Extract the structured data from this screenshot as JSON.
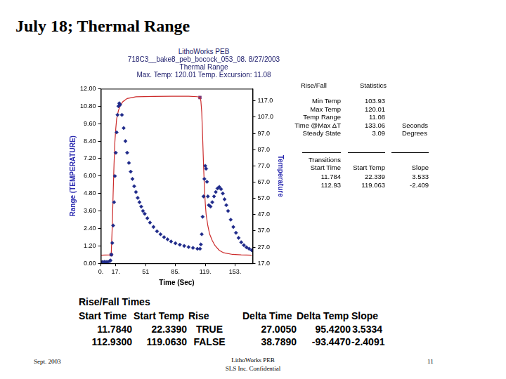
{
  "slide": {
    "title": "July 18; Thermal Range",
    "footer": {
      "left": "Sept. 2003",
      "center": [
        "LithoWorks PEB",
        "SLS Inc. Confidential"
      ],
      "right": "11"
    }
  },
  "chart_data": {
    "type": "scatter",
    "annotations": [
      "LithoWorks PEB",
      "718C3__bake8_peb_bocock_053_08. 8/27/2003"
    ],
    "title": "Thermal Range",
    "subtitle": "Max. Temp: 120.01  Temp. Excursion: 11.08",
    "x_label": "Time (Sec)",
    "y_label": "Range (TEMPERATURE)",
    "y2_label": "Temperature",
    "xlim": [
      0,
      173
    ],
    "xticks": [
      {
        "value": 0,
        "label": "0."
      },
      {
        "value": 17,
        "label": "17."
      },
      51,
      {
        "value": 85,
        "label": "85."
      },
      {
        "value": 119,
        "label": "119."
      },
      {
        "value": 153,
        "label": "153."
      }
    ],
    "ylim": [
      0,
      12
    ],
    "yticks": [
      {
        "value": 0,
        "label": "0.00"
      },
      {
        "value": 1.2,
        "label": "1.20"
      },
      {
        "value": 2.4,
        "label": "2.40"
      },
      {
        "value": 3.6,
        "label": "3.60"
      },
      {
        "value": 4.8,
        "label": "4.80"
      },
      {
        "value": 6,
        "label": "6.00"
      },
      {
        "value": 7.2,
        "label": "7.20"
      },
      {
        "value": 8.4,
        "label": "8.40"
      },
      {
        "value": 9.6,
        "label": "9.60"
      },
      {
        "value": 10.8,
        "label": "10.80"
      },
      {
        "value": 12,
        "label": "12.00"
      }
    ],
    "y2lim": [
      17,
      124.5
    ],
    "y2ticks": [
      {
        "value": 17,
        "label": "17.0"
      },
      {
        "value": 27,
        "label": "27.0"
      },
      {
        "value": 37,
        "label": "37.0"
      },
      {
        "value": 47,
        "label": "47.0"
      },
      {
        "value": 57,
        "label": "57.0"
      },
      {
        "value": 67,
        "label": "67.0"
      },
      {
        "value": 77,
        "label": "77.0"
      },
      {
        "value": 87,
        "label": "87.0"
      },
      {
        "value": 97,
        "label": "97.0"
      },
      {
        "value": 107,
        "label": "107.0"
      },
      {
        "value": 117,
        "label": "117.0"
      }
    ],
    "grid": false,
    "series": [
      {
        "name": "Range",
        "color": "#1f2a8a",
        "marker": "diamond",
        "line_style": "none",
        "x": [
          0,
          2,
          4,
          6,
          8,
          10,
          11,
          12,
          13,
          14,
          15,
          16,
          17,
          18,
          19,
          20,
          21,
          22,
          24,
          26,
          28,
          30,
          32,
          34,
          36,
          38,
          40,
          42,
          44,
          46,
          48,
          50,
          53,
          56,
          60,
          64,
          68,
          72,
          76,
          80,
          85,
          90,
          95,
          100,
          105,
          110,
          113,
          114,
          115,
          116,
          117,
          118,
          119,
          120,
          121,
          122,
          123,
          125,
          127,
          129,
          131,
          133,
          135,
          137,
          139,
          141,
          143,
          145,
          148,
          151,
          154,
          157,
          160,
          163,
          166,
          169,
          172
        ],
        "values": [
          0.1,
          0.1,
          0.1,
          0.1,
          0.1,
          0.15,
          0.2,
          0.6,
          1.4,
          2.6,
          4.2,
          6.0,
          7.6,
          9.0,
          10.2,
          10.8,
          11.0,
          10.9,
          10.2,
          9.3,
          8.4,
          7.6,
          6.9,
          6.3,
          5.8,
          5.3,
          4.9,
          4.5,
          4.2,
          3.9,
          3.6,
          3.4,
          3.1,
          2.8,
          2.5,
          2.2,
          2.0,
          1.8,
          1.65,
          1.5,
          1.38,
          1.28,
          1.2,
          1.12,
          1.06,
          1.0,
          1.0,
          1.3,
          2.0,
          3.2,
          4.6,
          5.8,
          6.7,
          6.5,
          5.6,
          4.6,
          4.0,
          3.9,
          4.2,
          4.6,
          4.9,
          5.15,
          5.25,
          5.1,
          4.8,
          4.4,
          4.0,
          3.6,
          3.0,
          2.5,
          2.1,
          1.75,
          1.45,
          1.25,
          1.1,
          1.0,
          0.9
        ]
      },
      {
        "name": "Temperature",
        "color": "#cc2b2b",
        "marker": "none",
        "line_style": "solid",
        "axis": "y2",
        "x": [
          0,
          5,
          10,
          11.784,
          13,
          14,
          15,
          16,
          17,
          18,
          20,
          22,
          25,
          30,
          40,
          60,
          80,
          100,
          110,
          112.93,
          114,
          115,
          116,
          117,
          118,
          119,
          120,
          122,
          124,
          127,
          130,
          135,
          140,
          150,
          160,
          172
        ],
        "values": [
          22.0,
          22.1,
          22.2,
          22.339,
          40,
          60,
          78,
          92,
          100,
          106,
          111,
          114,
          116.5,
          118.5,
          119.5,
          119.8,
          119.9,
          119.9,
          119.6,
          119.063,
          117,
          110,
          95,
          78,
          64,
          54,
          47,
          40,
          35,
          31,
          28,
          25,
          23.5,
          22.5,
          22.2,
          22.0
        ]
      },
      {
        "name": "Transitions",
        "color": "#7b3b7b",
        "marker": "square",
        "line_style": "none",
        "axis": "y2",
        "x": [
          11.784,
          112.93
        ],
        "values": [
          22.339,
          119.063
        ]
      }
    ]
  },
  "statistics": {
    "headers": [
      "Rise/Fall",
      "Statistics"
    ],
    "rows": [
      [
        "Min Temp",
        "103.93"
      ],
      [
        "Max Temp",
        "120.01"
      ],
      [
        "Temp Range",
        "11.08"
      ],
      [
        "Time @Max ΔT",
        "133.06",
        "Seconds"
      ],
      [
        "Steady State",
        "3.09",
        "Degrees"
      ]
    ],
    "transitions": {
      "headers": [
        [
          "Transitions",
          "Start Time"
        ],
        [
          "Start Temp"
        ],
        [
          "Slope"
        ]
      ],
      "rows": [
        [
          "11.784",
          "22.339",
          "3.533"
        ],
        [
          "112.93",
          "119.063",
          "-2.409"
        ]
      ]
    }
  },
  "table": {
    "title": "Rise/Fall Times",
    "headers": [
      "Start Time",
      "Start Temp",
      "Rise",
      "Delta Time",
      "Delta Temp",
      "Slope"
    ],
    "rows": [
      [
        "11.7840",
        "22.3390",
        "TRUE",
        "27.0050",
        "95.4200",
        "3.5334"
      ],
      [
        "112.9300",
        "119.0630",
        "FALSE",
        "38.7890",
        "-93.4470",
        "-2.4091"
      ]
    ]
  }
}
